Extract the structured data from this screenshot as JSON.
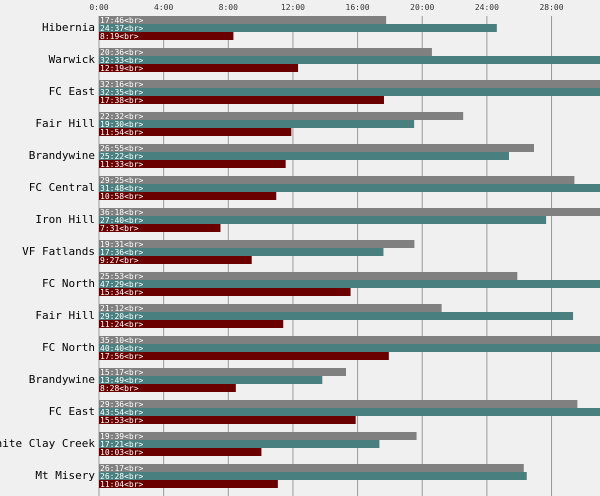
{
  "chart_data": {
    "type": "bar",
    "orientation": "horizontal",
    "title": "",
    "xlabel": "",
    "ylabel": "",
    "x_unit": "hours:minutes",
    "xlim": [
      "0:00",
      "31:00"
    ],
    "x_ticks": [
      "0:00",
      "4:00",
      "8:00",
      "12:00",
      "16:00",
      "20:00",
      "24:00",
      "28:00"
    ],
    "grid": "vertical",
    "legend": "none",
    "categories": [
      "Hibernia",
      "Warwick",
      "FC East",
      "Fair Hill",
      "Brandywine",
      "FC Central",
      "Iron Hill",
      "VF Fatlands",
      "FC North",
      "Fair Hill",
      "FC North",
      "Brandywine",
      "FC East",
      "White Clay Creek",
      "Mt Misery"
    ],
    "series": [
      {
        "color": "#808080",
        "values": [
          "17:46",
          "20:36",
          "32:16",
          "22:32",
          "26:55",
          "29:25",
          "36:18",
          "19:31",
          "25:53",
          "21:12",
          "35:10",
          "15:17",
          "29:36",
          "19:39",
          "26:17"
        ],
        "labels": [
          "17:46<br>",
          "20:36<br>",
          "32:16<br>",
          "22:32<br>",
          "26:55<br>",
          "29:25<br>",
          "36:18<br>",
          "19:31<br>",
          "25:53<br>",
          "21:12<br>",
          "35:10<br>",
          "15:17<br>",
          "29:36<br>",
          "19:39<br>",
          "26:17<br>"
        ]
      },
      {
        "color": "#4a7f7f",
        "values": [
          "24:37",
          "32:33",
          "32:35",
          "19:30",
          "25:22",
          "31:48",
          "27:40",
          "17:36",
          "47:29",
          "29:20",
          "40:40",
          "13:49",
          "43:54",
          "17:21",
          "26:28"
        ],
        "labels": [
          "24:37<br>",
          "32:33<br>",
          "32:35<br>",
          "19:30<br>",
          "25:22<br>",
          "31:48<br>",
          "27:40<br>",
          "17:36<br>",
          "47:29<br>",
          "29:20<br>",
          "40:40<br>",
          "13:49<br>",
          "43:54<br>",
          "17:21<br>",
          "26:28<br>"
        ]
      },
      {
        "color": "#6b0000",
        "values": [
          "8:19",
          "12:19",
          "17:38",
          "11:54",
          "11:33",
          "10:58",
          "7:31",
          "9:27",
          "15:34",
          "11:24",
          "17:56",
          "8:28",
          "15:53",
          "10:03",
          "11:04"
        ],
        "labels": [
          "8:19<br>",
          "12:19<br>",
          "17:38<br>",
          "11:54<br>",
          "11:33<br>",
          "10:58<br>",
          "7:31<br>",
          "9:27<br>",
          "15:34<br>",
          "11:24<br>",
          "17:56<br>",
          "8:28<br>",
          "15:53<br>",
          "10:03<br>",
          "11:04<br>"
        ]
      }
    ]
  }
}
